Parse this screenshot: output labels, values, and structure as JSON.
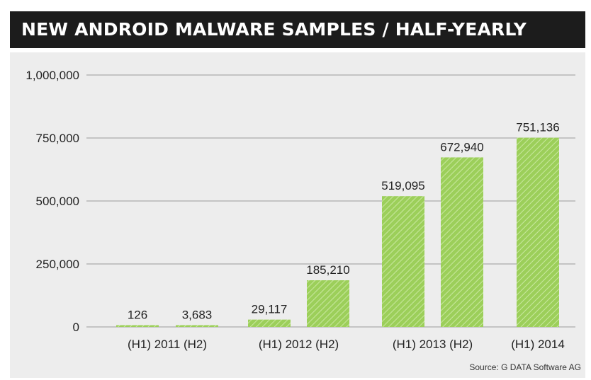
{
  "title": "NEW ANDROID MALWARE SAMPLES / HALF-YEARLY",
  "source": "Source: G DATA Software AG",
  "colors": {
    "title_background": "#1c1c1c",
    "title_text": "#ffffff",
    "plot_background": "#ededed",
    "bar_fill": "#9ccf5a",
    "bar_hatch": "#c9e8a0",
    "gridline": "#9a9a9a"
  },
  "chart_data": {
    "type": "bar",
    "title": "NEW ANDROID MALWARE SAMPLES / HALF-YEARLY",
    "xlabel": "",
    "ylabel": "",
    "ylim": [
      0,
      1000000
    ],
    "y_ticks": [
      0,
      250000,
      500000,
      750000,
      1000000
    ],
    "y_tick_labels": [
      "0",
      "250,000",
      "500,000",
      "750,000",
      "1,000,000"
    ],
    "grid": true,
    "bar_style": "hatched",
    "categories": [
      "2011 H1",
      "2011 H2",
      "2012 H1",
      "2012 H2",
      "2013 H1",
      "2013 H2",
      "2014 H1"
    ],
    "values": [
      126,
      3683,
      29117,
      185210,
      519095,
      672940,
      751136
    ],
    "value_labels": [
      "126",
      "3,683",
      "29,117",
      "185,210",
      "519,095",
      "672,940",
      "751,136"
    ],
    "x_group_labels": [
      "(H1) 2011 (H2)",
      "(H1) 2012 (H2)",
      "(H1) 2013 (H2)",
      "(H1) 2014"
    ]
  }
}
